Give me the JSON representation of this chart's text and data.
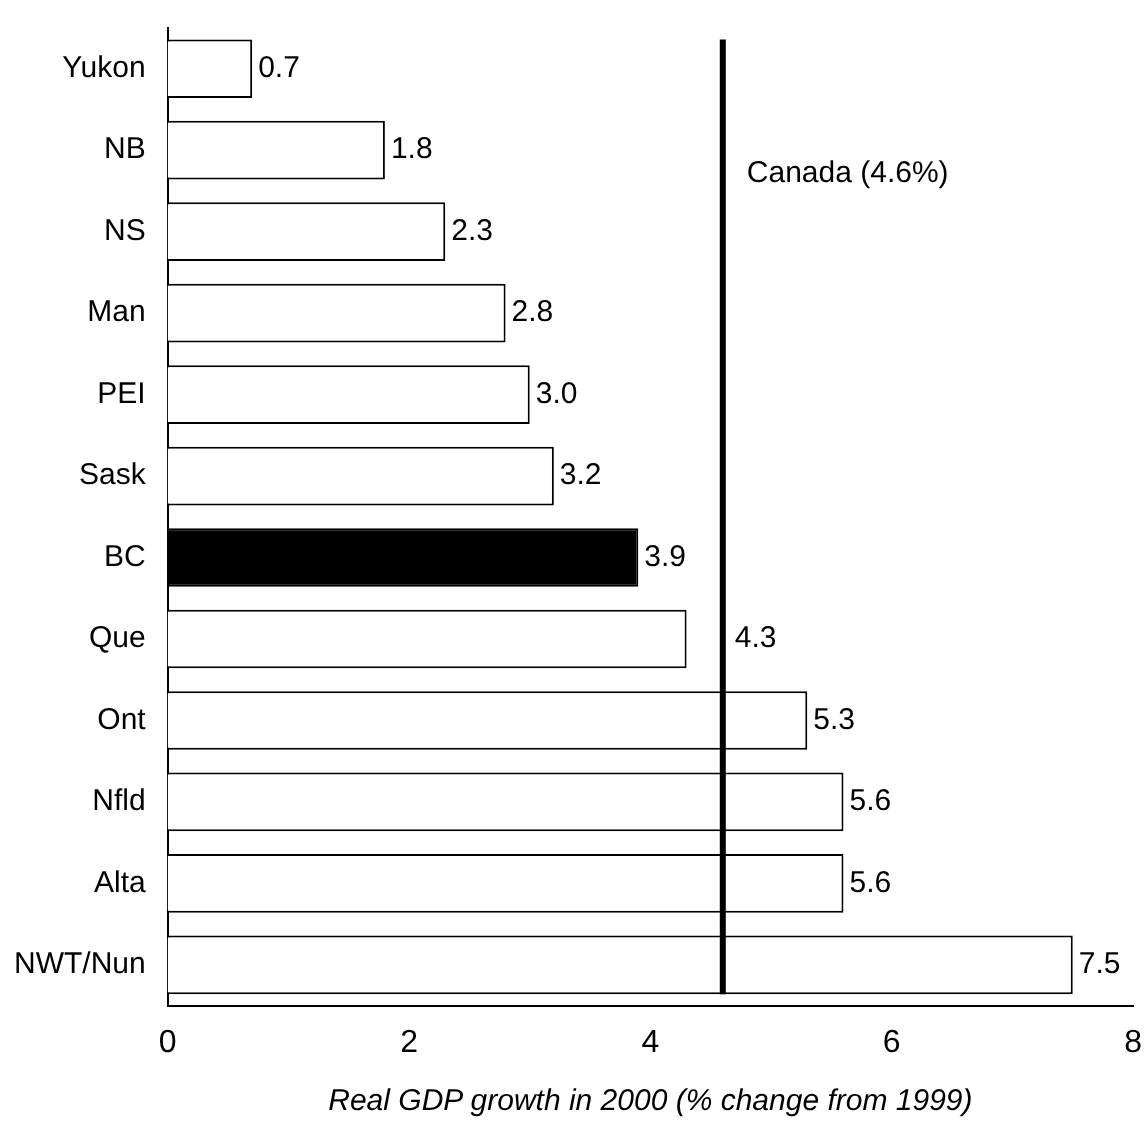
{
  "chart_data": {
    "type": "bar",
    "orientation": "horizontal",
    "xlabel": "Real GDP growth in 2000 (% change from 1999)",
    "categories": [
      "Yukon",
      "NB",
      "NS",
      "Man",
      "PEI",
      "Sask",
      "BC",
      "Que",
      "Ont",
      "Nfld",
      "Alta",
      "NWT/Nun"
    ],
    "values": [
      0.7,
      1.8,
      2.3,
      2.8,
      3.0,
      3.2,
      3.9,
      4.3,
      5.3,
      5.6,
      5.6,
      7.5
    ],
    "value_labels": [
      "0.7",
      "1.8",
      "2.3",
      "2.8",
      "3.0",
      "3.2",
      "3.9",
      "4.3",
      "5.3",
      "5.6",
      "5.6",
      "7.5"
    ],
    "colors": [
      "#ffffff",
      "#ffffff",
      "#ffffff",
      "#ffffff",
      "#ffffff",
      "#ffffff",
      "#000000",
      "#ffffff",
      "#ffffff",
      "#ffffff",
      "#ffffff",
      "#ffffff"
    ],
    "xlim": [
      0,
      8
    ],
    "xticks": [
      0,
      2,
      4,
      6,
      8
    ],
    "grid": false,
    "legend": false,
    "ref_lines": [
      {
        "axis": "x",
        "value": 4.6,
        "label": "Canada (4.6%)",
        "color": "#000000"
      }
    ]
  }
}
